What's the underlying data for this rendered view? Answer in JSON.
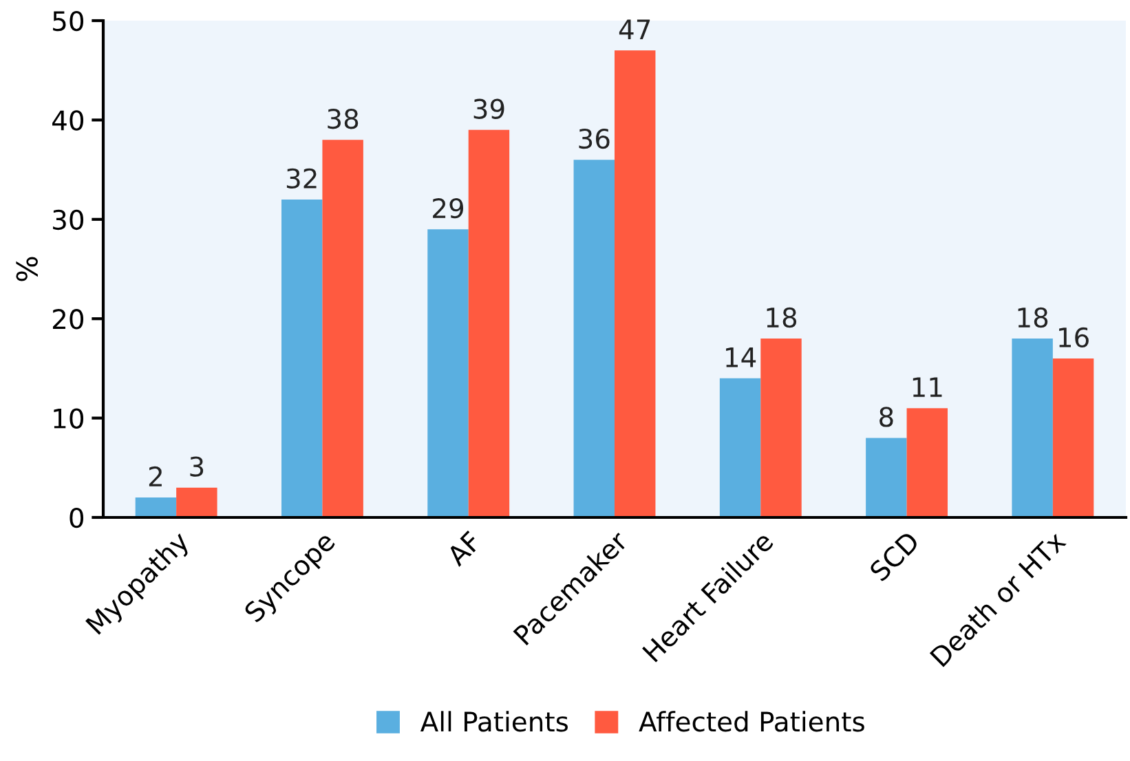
{
  "chart_data": {
    "type": "bar",
    "ylabel": "%",
    "categories": [
      "Myopathy",
      "Syncope",
      "AF",
      "Pacemaker",
      "Heart Failure",
      "SCD",
      "Death or HTx"
    ],
    "series": [
      {
        "name": "All Patients",
        "color": "#5aafe0",
        "values": [
          2,
          32,
          29,
          36,
          14,
          8,
          18
        ]
      },
      {
        "name": "Affected Patients",
        "color": "#ff5a40",
        "values": [
          3,
          38,
          39,
          47,
          18,
          11,
          16
        ]
      }
    ],
    "ylim": [
      0,
      50
    ],
    "yticks": [
      0,
      10,
      20,
      30,
      40,
      50
    ],
    "data_labels": true,
    "legend": "bottom",
    "grid": false
  }
}
